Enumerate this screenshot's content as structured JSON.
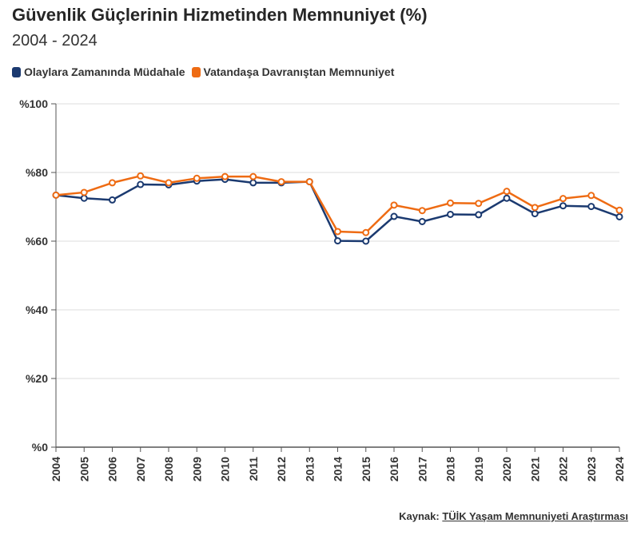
{
  "chart_data": {
    "type": "line",
    "title": "Güvenlik Güçlerinin Hizmetinden Memnuniyet (%)",
    "subtitle": "2004 - 2024",
    "categories": [
      "2004",
      "2005",
      "2006",
      "2007",
      "2008",
      "2009",
      "2010",
      "2011",
      "2012",
      "2013",
      "2014",
      "2015",
      "2016",
      "2017",
      "2018",
      "2019",
      "2020",
      "2021",
      "2022",
      "2023",
      "2024"
    ],
    "series": [
      {
        "name": "Olaylara Zamanında Müdahale",
        "color": "#1b3a70",
        "values": [
          73.4,
          72.5,
          72.0,
          76.5,
          76.4,
          77.5,
          78.0,
          77.0,
          77.0,
          77.3,
          60.1,
          60.0,
          67.2,
          65.7,
          67.8,
          67.7,
          72.5,
          68.0,
          70.3,
          70.1,
          67.1
        ]
      },
      {
        "name": "Vatandaşa Davranıştan Memnuniyet",
        "color": "#ee6b13",
        "values": [
          73.4,
          74.2,
          77.0,
          79.0,
          77.0,
          78.3,
          78.8,
          78.8,
          77.3,
          77.3,
          62.8,
          62.5,
          70.5,
          68.9,
          71.1,
          71.0,
          74.5,
          69.8,
          72.4,
          73.3,
          69.0
        ]
      }
    ],
    "ylim": [
      0,
      100
    ],
    "yticks": [
      0,
      20,
      40,
      60,
      80,
      100
    ],
    "ytick_labels": [
      "%0",
      "%20",
      "%40",
      "%60",
      "%80",
      "%100"
    ],
    "grid": true,
    "legend": "top-left"
  },
  "source": {
    "label": "Kaynak:",
    "link_text": "TÜİK Yaşam Memnuniyeti Araştırması"
  }
}
